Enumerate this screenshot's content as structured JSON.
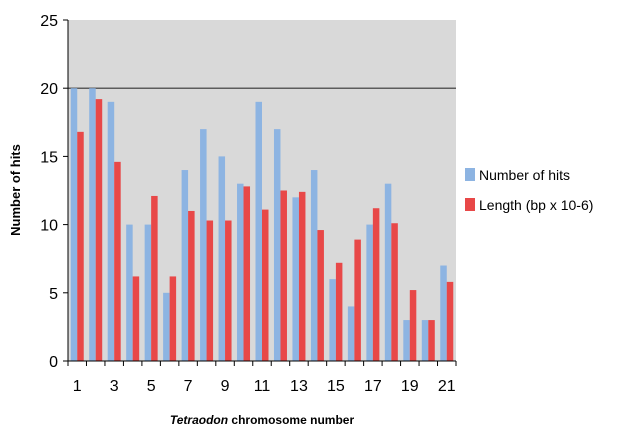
{
  "chart_data": {
    "type": "bar",
    "categories": [
      "1",
      "2",
      "3",
      "4",
      "5",
      "6",
      "7",
      "8",
      "9",
      "10",
      "11",
      "12",
      "13",
      "14",
      "15",
      "16",
      "17",
      "18",
      "19",
      "20",
      "21"
    ],
    "x_tick_labels": [
      "1",
      "3",
      "5",
      "7",
      "9",
      "11",
      "13",
      "15",
      "17",
      "19",
      "21"
    ],
    "y_ticks": [
      "0",
      "5",
      "10",
      "15",
      "20",
      "25"
    ],
    "series": [
      {
        "name": "Number of hits",
        "color": "#8db4e2",
        "values": [
          20,
          20,
          19,
          10,
          10,
          5,
          14,
          17,
          15,
          13,
          19,
          17,
          12,
          14,
          6,
          4,
          10,
          13,
          3,
          3,
          7
        ]
      },
      {
        "name": "Length (bp x 10-6)",
        "color": "#e84848",
        "values": [
          16.8,
          19.2,
          14.6,
          6.2,
          12.1,
          6.2,
          11.0,
          10.3,
          10.3,
          12.8,
          11.1,
          12.5,
          12.4,
          9.6,
          7.2,
          8.9,
          11.2,
          10.1,
          5.2,
          3.0,
          5.8
        ]
      }
    ],
    "ylim": [
      0,
      25
    ],
    "ylabel": "Number of hits",
    "xlabel_italic": "Tetraodon",
    "xlabel_rest": " chromosome number",
    "legend_position": "right",
    "plot_background": "#d9d9d9",
    "reference_line": 20
  }
}
